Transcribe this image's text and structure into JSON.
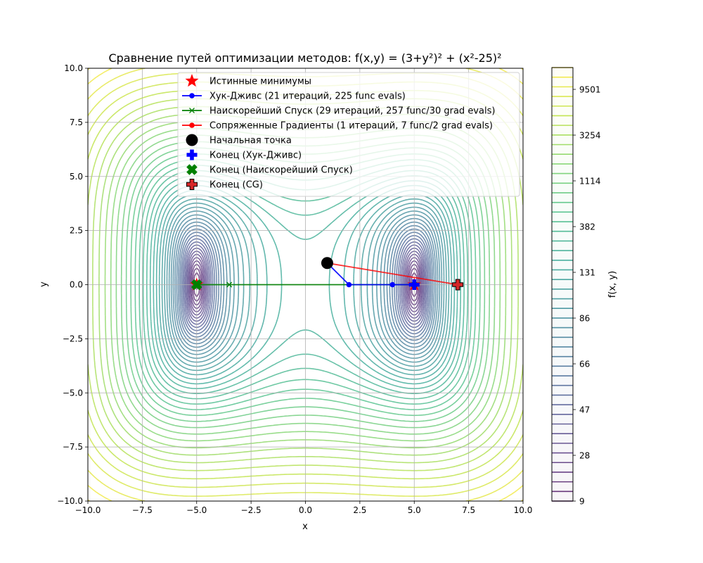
{
  "chart_data": {
    "type": "contour",
    "title": "Сравнение путей оптимизации методов: f(x,y) = (3+y²)² + (x²-25)²",
    "xlabel": "x",
    "ylabel": "y",
    "xlim": [
      -10,
      10
    ],
    "ylim": [
      -10,
      10
    ],
    "x_ticks": [
      -10,
      -7.5,
      -5,
      -2.5,
      0,
      2.5,
      5,
      7.5,
      10
    ],
    "x_tick_labels": [
      "−10.0",
      "−7.5",
      "−5.0",
      "−2.5",
      "0.0",
      "2.5",
      "5.0",
      "7.5",
      "10.0"
    ],
    "y_ticks": [
      -10,
      -7.5,
      -5,
      -2.5,
      0,
      2.5,
      5,
      7.5,
      10
    ],
    "y_tick_labels": [
      "−10.0",
      "−7.5",
      "−5.0",
      "−2.5",
      "0.0",
      "2.5",
      "5.0",
      "7.5",
      "10.0"
    ],
    "grid": true,
    "legend_position": "top-center",
    "colorbar": {
      "label": "f(x, y)",
      "tick_labels": [
        "9",
        "28",
        "47",
        "66",
        "86",
        "131",
        "382",
        "1114",
        "3254",
        "9501"
      ],
      "colormap": "viridis",
      "min": 9,
      "max": 16000
    },
    "series": [
      {
        "name": "Истинные минимумы",
        "kind": "marker",
        "marker": "star",
        "color": "#ff0000",
        "points": [
          [
            -5,
            0
          ],
          [
            5,
            0
          ]
        ]
      },
      {
        "name": "Хук-Дживс (21 итераций, 225 func evals)",
        "kind": "line",
        "marker": "dot",
        "color": "#0000ff",
        "points": [
          [
            1,
            1
          ],
          [
            2,
            0
          ],
          [
            4,
            0
          ],
          [
            5,
            0
          ]
        ]
      },
      {
        "name": "Наискорейший Спуск (29 итераций, 257 func/30 grad evals)",
        "kind": "line",
        "marker": "x",
        "color": "#008000",
        "points": [
          [
            5,
            0
          ],
          [
            -3.5,
            0
          ],
          [
            -5,
            0
          ]
        ]
      },
      {
        "name": "Сопряженные Градиенты (1 итераций, 7 func/2 grad evals)",
        "kind": "line",
        "marker": "dot",
        "color": "#ff0000",
        "points": [
          [
            1,
            1
          ],
          [
            7,
            0
          ]
        ]
      },
      {
        "name": "Начальная точка",
        "kind": "marker",
        "marker": "circle",
        "color": "#000000",
        "points": [
          [
            1,
            1
          ]
        ]
      },
      {
        "name": "Конец (Хук-Дживс)",
        "kind": "marker",
        "marker": "plus",
        "color": "#0000ff",
        "points": [
          [
            5,
            0
          ]
        ]
      },
      {
        "name": "Конец (Наискорейший Спуск)",
        "kind": "marker",
        "marker": "X",
        "color": "#008000",
        "points": [
          [
            -5,
            0
          ]
        ]
      },
      {
        "name": "Конец (CG)",
        "kind": "marker",
        "marker": "plus",
        "color": "#d62728",
        "points": [
          [
            7,
            0
          ]
        ]
      }
    ]
  }
}
